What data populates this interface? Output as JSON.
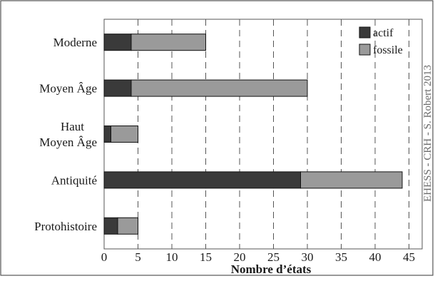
{
  "chart_data": {
    "type": "bar",
    "orientation": "horizontal",
    "stacked": true,
    "categories": [
      "Moderne",
      "Moyen Âge",
      "Haut Moyen Âge",
      "Antiquité",
      "Protohistoire"
    ],
    "category_label_lines": [
      [
        "Moderne"
      ],
      [
        "Moyen Âge"
      ],
      [
        "Haut",
        "Moyen Âge"
      ],
      [
        "Antiquité"
      ],
      [
        "Protohistoire"
      ]
    ],
    "series": [
      {
        "name": "actif",
        "values": [
          4,
          4,
          1,
          29,
          2
        ],
        "color": "#3a3a3a"
      },
      {
        "name": "fossile",
        "values": [
          11,
          26,
          4,
          15,
          3
        ],
        "color": "#9a9a9a"
      }
    ],
    "xlabel": "Nombre d’états",
    "ylabel": "",
    "xlim": [
      0,
      47
    ],
    "xticks": [
      0,
      5,
      10,
      15,
      20,
      25,
      30,
      35,
      40,
      45
    ],
    "grid": "vertical dashed",
    "legend_position": "top-right",
    "credit": "EHESS - CRH - S. Robert 2013"
  }
}
